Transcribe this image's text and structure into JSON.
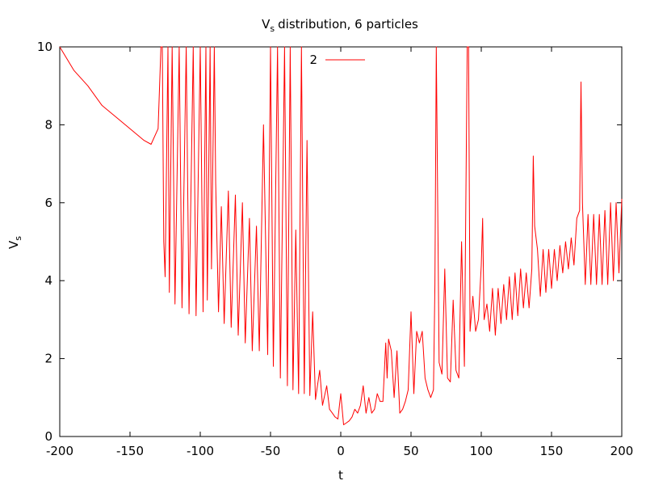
{
  "chart_data": {
    "type": "line",
    "title": "distribution, 6 particles",
    "title_symbol": "V",
    "title_subscript": "s",
    "xlabel": "t",
    "ylabel_symbol": "V",
    "ylabel_subscript": "s",
    "xlim": [
      -200,
      200
    ],
    "ylim": [
      0,
      10
    ],
    "xticks": [
      -200,
      -150,
      -100,
      -50,
      0,
      50,
      100,
      150,
      200
    ],
    "yticks": [
      0,
      2,
      4,
      6,
      8,
      10
    ],
    "xtick_labels": [
      "-200",
      "-150",
      "-100",
      "-50",
      "0",
      "50",
      "100",
      "150",
      "200"
    ],
    "ytick_labels": [
      "0",
      "2",
      "4",
      "6",
      "8",
      "10"
    ],
    "grid": false,
    "legend_position": "top-center",
    "series": [
      {
        "name": "2",
        "color": "#ff0000",
        "x": [
          -200,
          -190,
          -180,
          -170,
          -160,
          -150,
          -140,
          -135,
          -130,
          -128,
          -127,
          -126,
          -125,
          -123,
          -122,
          -120,
          -118,
          -115,
          -113,
          -110,
          -108,
          -105,
          -103,
          -100,
          -98,
          -96,
          -95,
          -93,
          -92,
          -90,
          -89,
          -87,
          -85,
          -83,
          -80,
          -78,
          -75,
          -73,
          -70,
          -68,
          -65,
          -63,
          -60,
          -58,
          -55,
          -52,
          -50,
          -48,
          -45,
          -43,
          -40,
          -38,
          -36,
          -34,
          -32,
          -30,
          -28,
          -26,
          -24,
          -22,
          -20,
          -18,
          -15,
          -13,
          -10,
          -8,
          -6,
          -4,
          -2,
          0,
          2,
          4,
          6,
          8,
          10,
          12,
          14,
          16,
          18,
          20,
          22,
          24,
          26,
          28,
          30,
          32,
          33,
          34,
          36,
          38,
          40,
          42,
          44,
          46,
          48,
          50,
          52,
          54,
          56,
          58,
          60,
          62,
          64,
          66,
          67,
          68,
          70,
          72,
          74,
          76,
          78,
          80,
          82,
          84,
          86,
          88,
          90,
          91,
          92,
          94,
          96,
          98,
          100,
          101,
          102,
          104,
          106,
          108,
          110,
          112,
          114,
          116,
          118,
          120,
          122,
          124,
          126,
          128,
          130,
          132,
          134,
          136,
          137,
          138,
          140,
          142,
          144,
          146,
          148,
          150,
          152,
          154,
          156,
          158,
          160,
          162,
          164,
          166,
          168,
          170,
          171,
          172,
          174,
          176,
          178,
          180,
          182,
          184,
          186,
          188,
          190,
          192,
          194,
          196,
          198,
          200
        ],
        "y": [
          10,
          9.4,
          9.0,
          8.5,
          8.2,
          7.9,
          7.6,
          7.5,
          7.9,
          10,
          10,
          5.0,
          4.1,
          10,
          3.7,
          10,
          3.4,
          10,
          3.3,
          10,
          3.15,
          10,
          3.1,
          10,
          3.2,
          10,
          3.5,
          10,
          4.3,
          10,
          6.5,
          3.2,
          5.9,
          2.9,
          6.3,
          2.8,
          6.2,
          2.6,
          6.0,
          2.4,
          5.6,
          2.2,
          5.4,
          2.2,
          8.0,
          2.1,
          10,
          1.8,
          10,
          1.5,
          10,
          1.3,
          10,
          1.2,
          5.3,
          1.1,
          10,
          1.1,
          7.6,
          1.05,
          3.2,
          0.95,
          1.7,
          0.8,
          1.3,
          0.7,
          0.6,
          0.5,
          0.45,
          1.1,
          0.3,
          0.35,
          0.4,
          0.5,
          0.7,
          0.6,
          0.8,
          1.3,
          0.6,
          1.0,
          0.6,
          0.7,
          1.1,
          0.9,
          0.9,
          2.4,
          1.5,
          2.5,
          2.2,
          1.0,
          2.2,
          0.6,
          0.7,
          0.9,
          1.2,
          3.2,
          1.1,
          2.7,
          2.4,
          2.7,
          1.5,
          1.2,
          1.0,
          1.2,
          3.9,
          10,
          1.9,
          1.6,
          4.3,
          1.5,
          1.4,
          3.5,
          1.7,
          1.5,
          5.0,
          1.8,
          10,
          10,
          2.7,
          3.6,
          2.7,
          3.0,
          4.4,
          5.6,
          3.0,
          3.4,
          2.7,
          3.8,
          2.6,
          3.8,
          2.9,
          3.9,
          3.0,
          4.1,
          3.0,
          4.2,
          3.1,
          4.3,
          3.3,
          4.2,
          3.3,
          4.3,
          7.2,
          5.4,
          4.8,
          3.6,
          4.8,
          3.7,
          4.8,
          3.8,
          4.8,
          4.0,
          4.9,
          4.2,
          5.0,
          4.3,
          5.1,
          4.4,
          5.6,
          5.8,
          9.1,
          6.0,
          3.9,
          5.7,
          3.9,
          5.7,
          3.9,
          5.7,
          3.9,
          5.8,
          3.9,
          6.0,
          4.0,
          6.0,
          4.2,
          6.1
        ]
      }
    ]
  }
}
